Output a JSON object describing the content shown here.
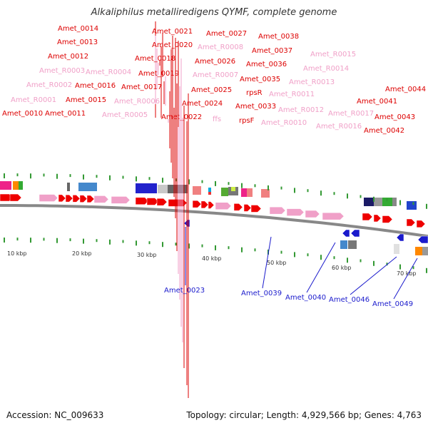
{
  "title": "Alkaliphilus metalliredigens QYMF, complete genome",
  "footer": {
    "accession": "Accession: NC_009633",
    "topology": "Topology: circular; Length: 4,929,566 bp; Genes: 4,763"
  },
  "colors": {
    "gene_label": "#dd0000",
    "rna_label": "#f0a0c8",
    "minus_label": "#1a1acc",
    "cds_arrow": "#ee0000",
    "rna_arrow": "#f0a0c8",
    "backbone": "#888888",
    "tick": "#339933"
  },
  "scale_labels": [
    "10 kbp",
    "20 kbp",
    "30 kbp",
    "40 kbp",
    "50 kbp",
    "60 kbp",
    "70 kbp"
  ],
  "plus_labels": [
    {
      "text": "Amet_0010",
      "kind": "gene"
    },
    {
      "text": "Amet_R0001",
      "kind": "rna"
    },
    {
      "text": "Amet_R0002",
      "kind": "rna"
    },
    {
      "text": "Amet_R0003",
      "kind": "rna"
    },
    {
      "text": "Amet_0012",
      "kind": "gene"
    },
    {
      "text": "Amet_0013",
      "kind": "gene"
    },
    {
      "text": "Amet_0014",
      "kind": "gene"
    },
    {
      "text": "Amet_0011",
      "kind": "gene"
    },
    {
      "text": "Amet_0015",
      "kind": "gene"
    },
    {
      "text": "Amet_0016",
      "kind": "gene"
    },
    {
      "text": "Amet_R0004",
      "kind": "rna"
    },
    {
      "text": "Amet_R0005",
      "kind": "rna"
    },
    {
      "text": "Amet_R0006",
      "kind": "rna"
    },
    {
      "text": "Amet_0017",
      "kind": "gene"
    },
    {
      "text": "Amet_0018",
      "kind": "gene"
    },
    {
      "text": "Amet_0019",
      "kind": "gene"
    },
    {
      "text": "Amet_0020",
      "kind": "gene"
    },
    {
      "text": "Amet_0021",
      "kind": "gene"
    },
    {
      "text": "Amet_0022",
      "kind": "gene"
    },
    {
      "text": "Amet_0024",
      "kind": "gene"
    },
    {
      "text": "Amet_0025",
      "kind": "gene"
    },
    {
      "text": "ffs",
      "kind": "rna"
    },
    {
      "text": "Amet_R0007",
      "kind": "rna"
    },
    {
      "text": "Amet_0026",
      "kind": "gene"
    },
    {
      "text": "Amet_R0008",
      "kind": "rna"
    },
    {
      "text": "Amet_0027",
      "kind": "gene"
    },
    {
      "text": "rpsF",
      "kind": "gene"
    },
    {
      "text": "Amet_0033",
      "kind": "gene"
    },
    {
      "text": "rpsR",
      "kind": "gene"
    },
    {
      "text": "Amet_0035",
      "kind": "gene"
    },
    {
      "text": "Amet_0036",
      "kind": "gene"
    },
    {
      "text": "Amet_0037",
      "kind": "gene"
    },
    {
      "text": "Amet_0038",
      "kind": "gene"
    },
    {
      "text": "Amet_R0010",
      "kind": "rna"
    },
    {
      "text": "Amet_R0011",
      "kind": "rna"
    },
    {
      "text": "Amet_R0012",
      "kind": "rna"
    },
    {
      "text": "Amet_R0013",
      "kind": "rna"
    },
    {
      "text": "Amet_R0014",
      "kind": "rna"
    },
    {
      "text": "Amet_R0015",
      "kind": "rna"
    },
    {
      "text": "Amet_R0016",
      "kind": "rna"
    },
    {
      "text": "Amet_R0017",
      "kind": "rna"
    },
    {
      "text": "Amet_0041",
      "kind": "gene"
    },
    {
      "text": "Amet_0042",
      "kind": "gene"
    },
    {
      "text": "Amet_0043",
      "kind": "gene"
    },
    {
      "text": "Amet_0044",
      "kind": "gene"
    }
  ],
  "minus_labels": [
    {
      "text": "Amet_0023"
    },
    {
      "text": "Amet_0039"
    },
    {
      "text": "Amet_0040"
    },
    {
      "text": "Amet_0046"
    },
    {
      "text": "Amet_0049"
    }
  ]
}
